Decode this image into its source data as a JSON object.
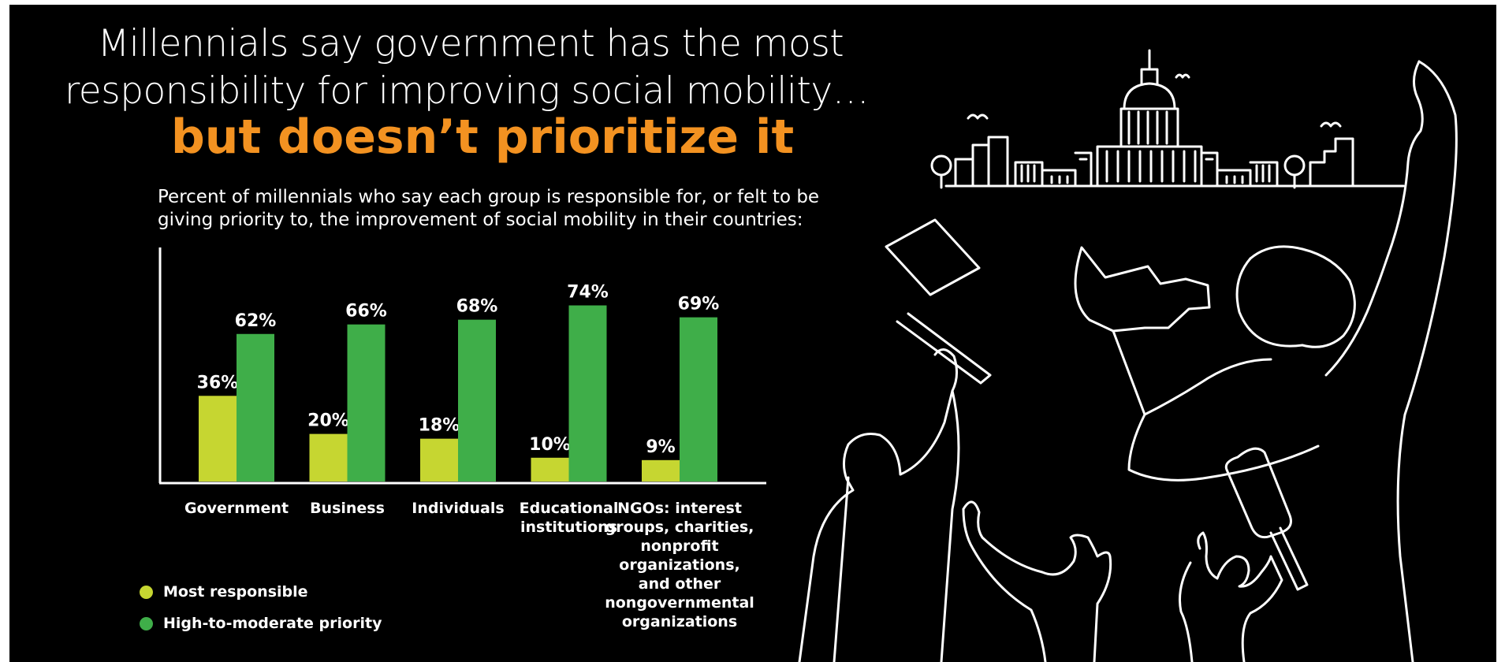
{
  "title": {
    "line1": "Millennials say government has the most",
    "line2": "responsibility for improving social mobility…",
    "line3": "but doesn’t prioritize it"
  },
  "subtitle": "Percent of millennials who say each group is responsible for, or felt to be giving priority to, the improvement of social mobility in their countries:",
  "colors": {
    "background": "#000000",
    "accent_orange": "#f39221",
    "most_responsible": "#c6d631",
    "high_priority": "#3fae49",
    "text": "#ffffff"
  },
  "chart_data": {
    "type": "bar",
    "categories": [
      "Government",
      "Business",
      "Individuals",
      "Educational institutions",
      "NGOs: interest groups, charities, nonprofit organizations, and other nongovernmental organizations"
    ],
    "series": [
      {
        "name": "Most responsible",
        "values": [
          36,
          20,
          18,
          10,
          9
        ],
        "labels": [
          "36%",
          "20%",
          "18%",
          "10%",
          "9%"
        ],
        "color": "#c6d631"
      },
      {
        "name": "High-to-moderate priority",
        "values": [
          62,
          66,
          68,
          74,
          69
        ],
        "labels": [
          "62%",
          "66%",
          "68%",
          "74%",
          "69%"
        ],
        "color": "#3fae49"
      }
    ],
    "ylim": [
      0,
      100
    ],
    "grid": false,
    "legend_position": "bottom-left"
  },
  "category_lines": [
    [
      "Government"
    ],
    [
      "Business"
    ],
    [
      "Individuals"
    ],
    [
      "Educational",
      "institutions"
    ],
    [
      "NGOs: interest",
      "groups, charities,",
      "nonprofit",
      "organizations,",
      "and other",
      "nongovernmental",
      "organizations"
    ]
  ],
  "legend": {
    "most_responsible": "Most responsible",
    "high_priority": "High-to-moderate priority"
  }
}
